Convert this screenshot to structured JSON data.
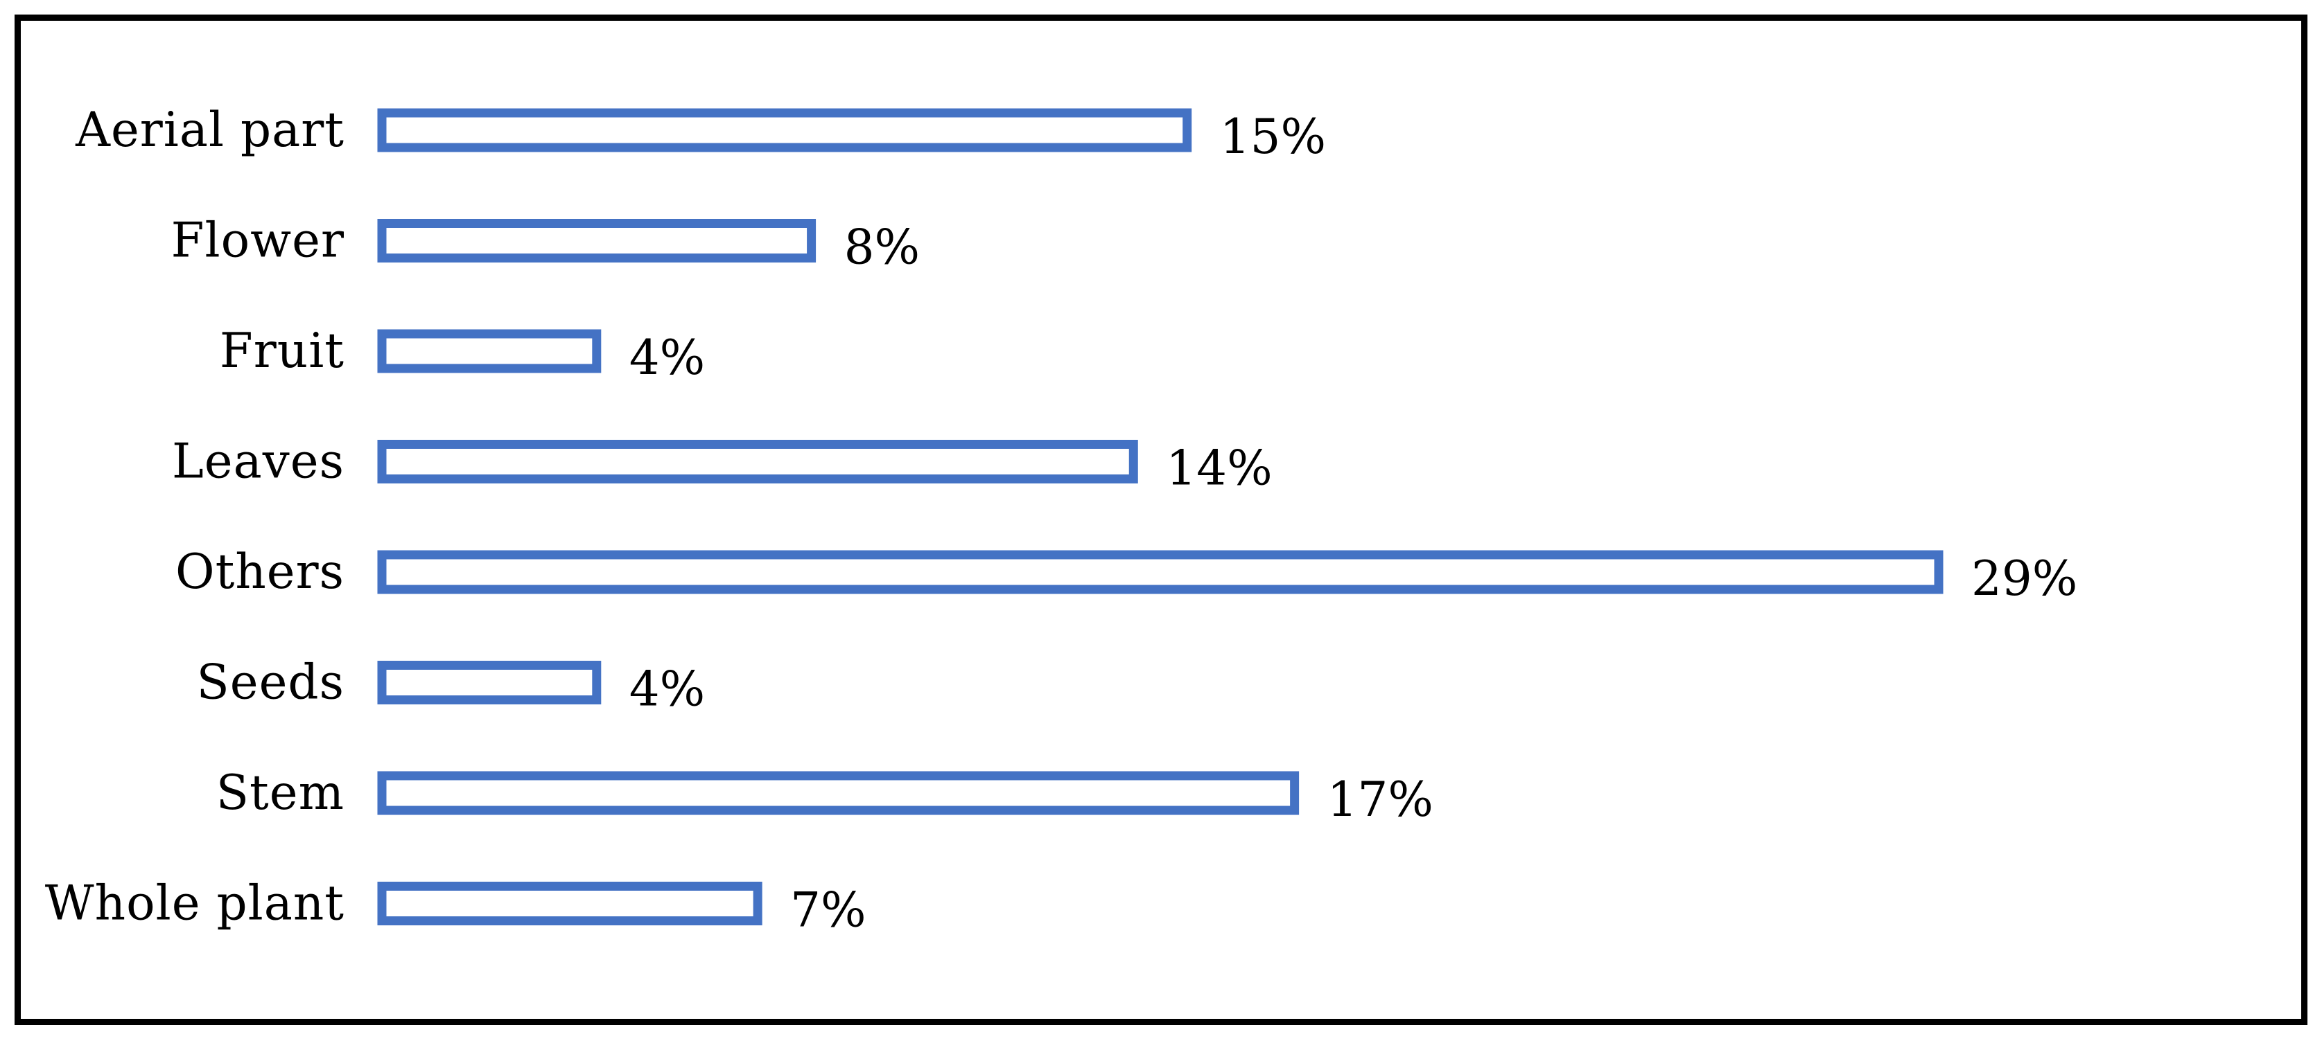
{
  "chart_data": {
    "type": "bar",
    "orientation": "horizontal",
    "title": "",
    "xlabel": "",
    "ylabel": "",
    "categories": [
      "Aerial part",
      "Flower",
      "Fruit",
      "Leaves",
      "Others",
      "Seeds",
      "Stem",
      "Whole plant"
    ],
    "values": [
      15,
      8,
      4,
      14,
      29,
      4,
      17,
      7
    ],
    "value_labels": [
      "15%",
      "8%",
      "4%",
      "14%",
      "29%",
      "4%",
      "17%",
      "7%"
    ],
    "unit": "%",
    "xlim": [
      0,
      29
    ],
    "grid": false,
    "legend": "none",
    "bar_style": "outline",
    "bar_color": "#4472C4",
    "frame_color": "#000000"
  }
}
